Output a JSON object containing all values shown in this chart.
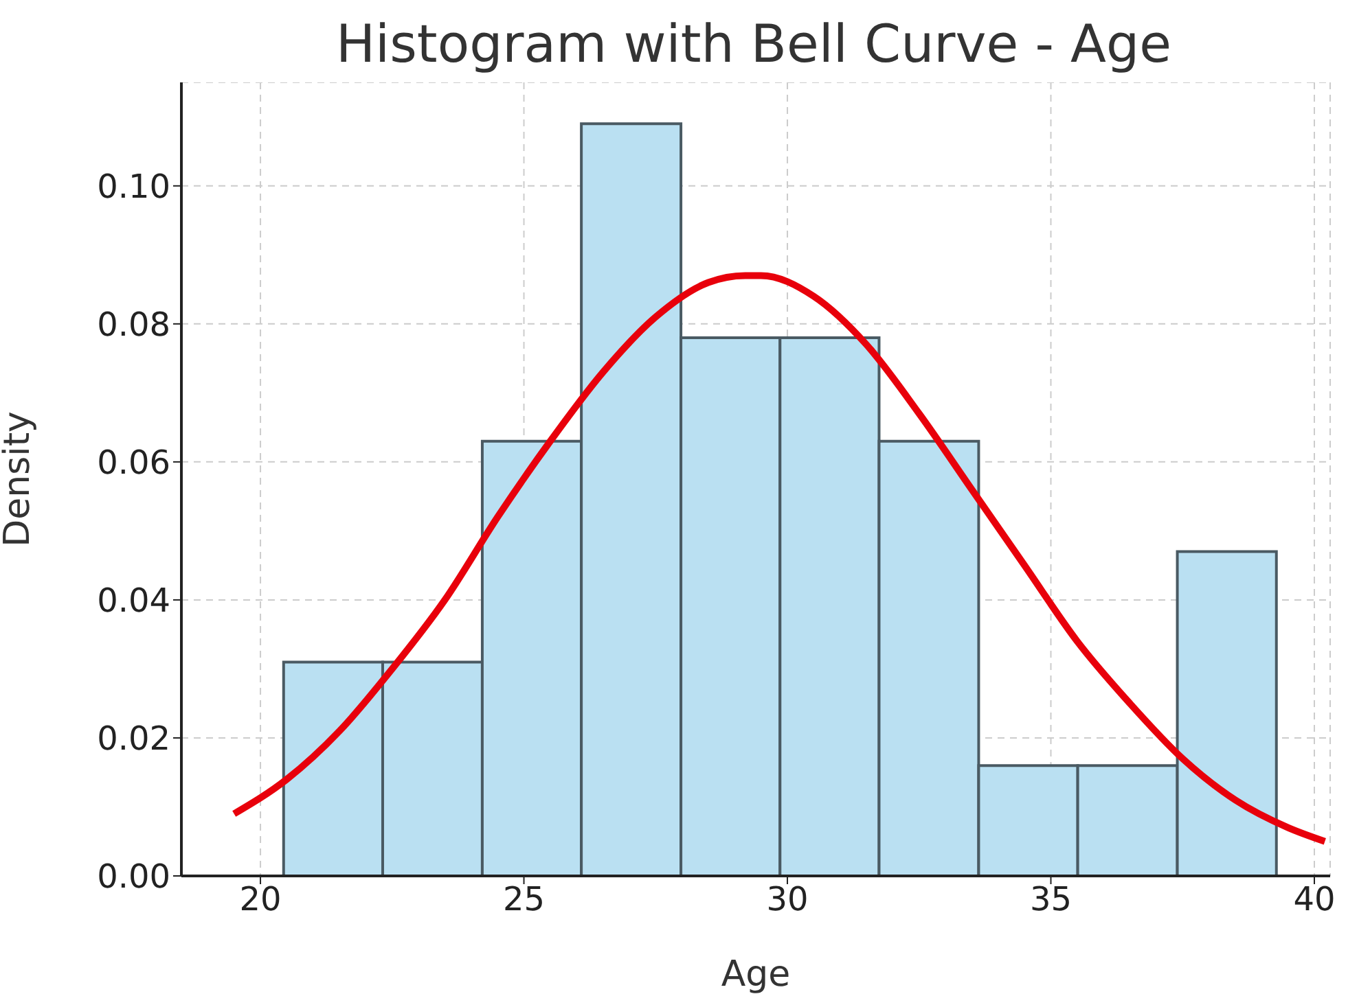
{
  "chart_data": {
    "type": "histogram",
    "title": "Histogram with Bell Curve - Age",
    "xlabel": "Age",
    "ylabel": "Density",
    "bins": [
      20.44,
      22.32,
      24.21,
      26.09,
      27.98,
      29.86,
      31.74,
      33.63,
      35.51,
      37.4,
      39.28
    ],
    "values": [
      0.031,
      0.031,
      0.063,
      0.109,
      0.078,
      0.078,
      0.063,
      0.016,
      0.016,
      0.047
    ],
    "color": "#bae0f2",
    "series": [
      {
        "type": "line",
        "color": "#e8000b",
        "x": [
          19.5,
          20.5,
          21.5,
          22.5,
          23.5,
          24.5,
          25.5,
          26.5,
          27.5,
          28.5,
          29.2,
          29.5,
          30.5,
          31.5,
          32.5,
          33.5,
          34.5,
          35.5,
          36.5,
          37.5,
          38.5,
          39.5,
          40.2
        ],
        "values": [
          0.009,
          0.014,
          0.021,
          0.03,
          0.04,
          0.052,
          0.063,
          0.073,
          0.081,
          0.086,
          0.087,
          0.087,
          0.084,
          0.077,
          0.067,
          0.056,
          0.045,
          0.034,
          0.025,
          0.017,
          0.011,
          0.007,
          0.005
        ]
      }
    ],
    "xlim": [
      18.5,
      40.3
    ],
    "ylim": [
      0,
      0.115
    ],
    "xticks": [
      20,
      25,
      30,
      35,
      40
    ],
    "yticks": [
      {
        "value": 0,
        "label": "0.00"
      },
      {
        "value": 0.02,
        "label": "0.02"
      },
      {
        "value": 0.04,
        "label": "0.04"
      },
      {
        "value": 0.06,
        "label": "0.06"
      },
      {
        "value": 0.08,
        "label": "0.08"
      },
      {
        "value": 0.1,
        "label": "0.10"
      }
    ],
    "grid": true
  }
}
